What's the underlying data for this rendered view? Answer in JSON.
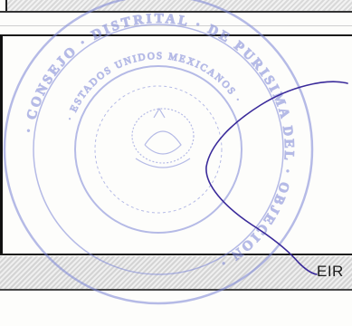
{
  "document": {
    "footer_fragment": "EIR"
  },
  "seal": {
    "color": "#7b85d6",
    "outer_text": "· CONSEJO · DISTRITAL · DE PURISIMA DEL · OBJECION ·",
    "inner_text": "· ESTADOS UNIDOS MEXICANOS ·"
  },
  "signature": {
    "color": "#3a2a9a"
  },
  "colors": {
    "border": "#1a1a1a",
    "band": "#dcdcdc"
  }
}
